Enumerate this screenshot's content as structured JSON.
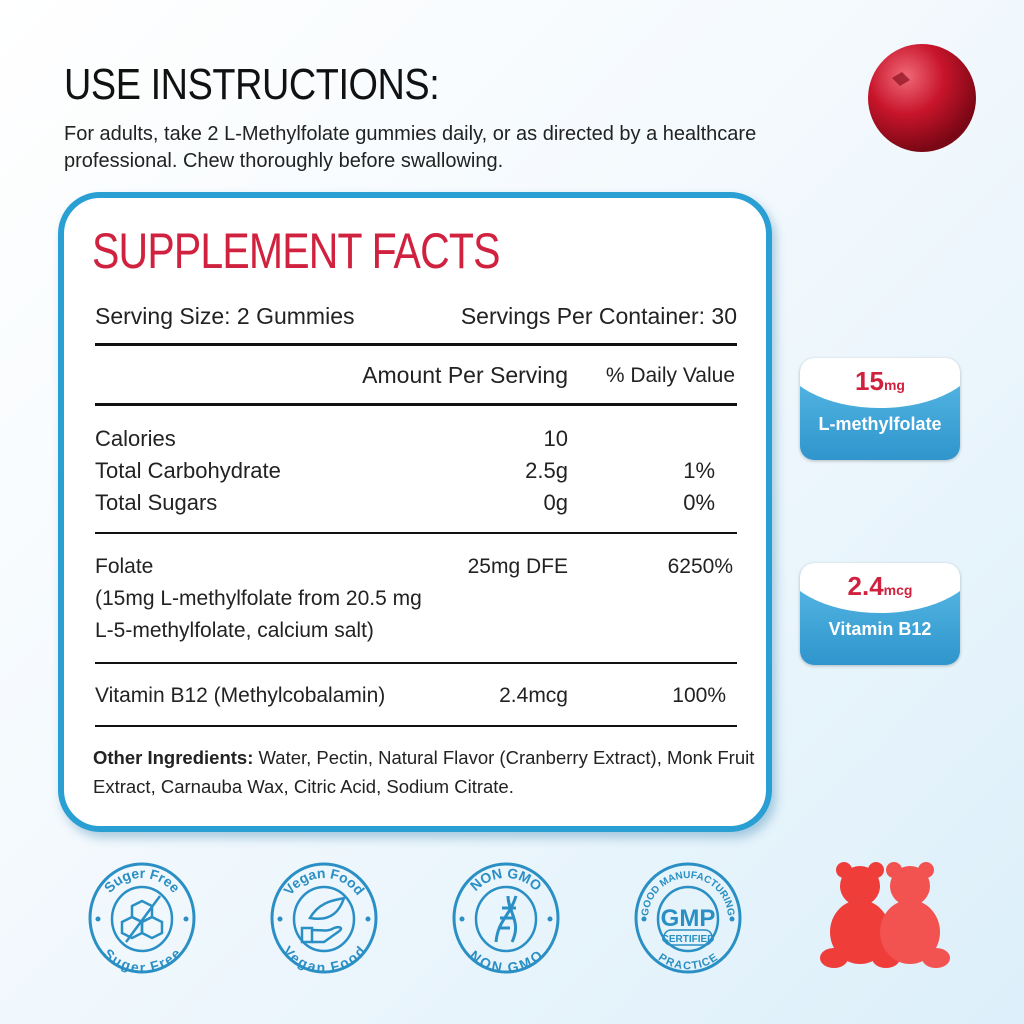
{
  "header": {
    "title": "USE INSTRUCTIONS:",
    "instructions": "For adults, take 2 L-Methylfolate gummies daily, or as directed by a healthcare professional. Chew thoroughly before swallowing."
  },
  "facts": {
    "title": "SUPPLEMENT FACTS",
    "serving_size": "Serving Size:  2 Gummies",
    "servings_per_container": "Servings Per Container: 30",
    "col_amount": "Amount Per Serving",
    "col_dv": "% Daily Value",
    "rows": [
      {
        "label": "Calories",
        "amount": "10",
        "dv": ""
      },
      {
        "label": "Total Carbohydrate",
        "amount": "2.5g",
        "dv": "1%"
      },
      {
        "label": "Total Sugars",
        "amount": "0g",
        "dv": "0%"
      },
      {
        "label": "Folate",
        "amount": "25mg DFE",
        "dv": "6250%",
        "note1": "(15mg L-methylfolate from 20.5 mg",
        "note2": "L-5-methylfolate, calcium salt)"
      },
      {
        "label": "Vitamin B12 (Methylcobalamin)",
        "amount": "2.4mcg",
        "dv": "100%"
      }
    ],
    "other_label": "Other Ingredients:",
    "other_text": " Water, Pectin, Natural Flavor (Cranberry Extract), Monk Fruit Extract, Carnauba Wax, Citric Acid, Sodium Citrate."
  },
  "highlights": [
    {
      "value": "15",
      "unit": "mg",
      "name": "L-methylfolate"
    },
    {
      "value": "2.4",
      "unit": "mcg",
      "name": "Vitamin B12"
    }
  ],
  "seals": [
    {
      "icon": "sugar-cubes-icon",
      "top": "Suger Free",
      "bottom": "Suger Free"
    },
    {
      "icon": "leaf-hand-icon",
      "top": "Vegan Food",
      "bottom": "Vegan Food"
    },
    {
      "icon": "dna-icon",
      "top": "NON GMO",
      "bottom": "NON GMO"
    },
    {
      "icon": "gmp-icon",
      "top": "GOOD MANUFACTURING",
      "bottom": "PRACTICE",
      "center": "GMP",
      "center2": "CERTIFIED"
    }
  ],
  "colors": {
    "accent_red": "#d0213f",
    "accent_blue": "#2a9fd3"
  }
}
